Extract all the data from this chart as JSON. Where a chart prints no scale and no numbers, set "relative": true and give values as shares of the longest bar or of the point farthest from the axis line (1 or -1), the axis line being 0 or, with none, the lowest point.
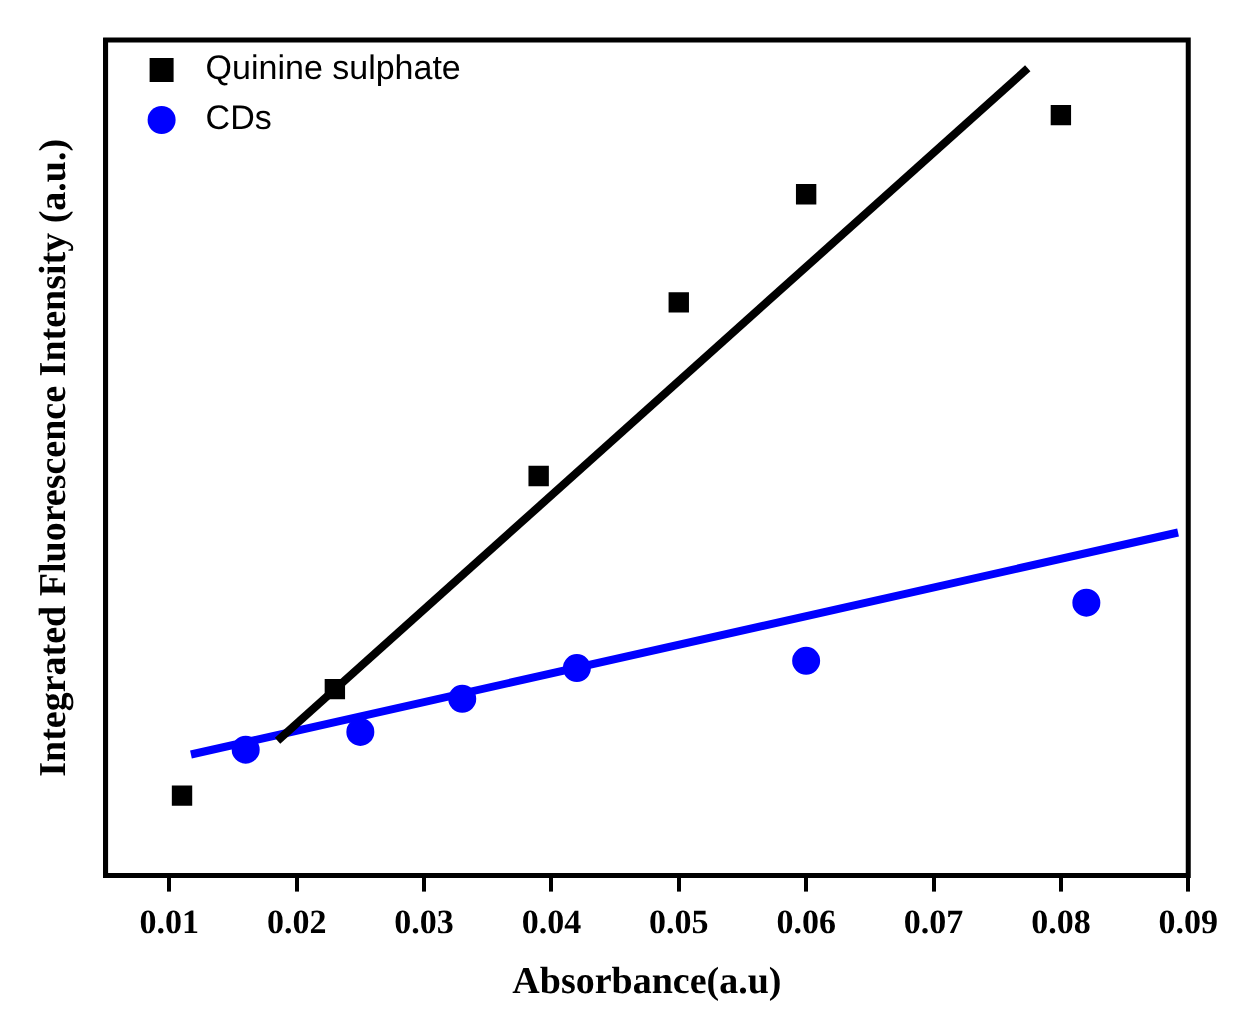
{
  "chart_data": {
    "type": "scatter",
    "xlabel": "Absorbance(a.u)",
    "ylabel": "Integrated Fluorescence Intensity (a.u.)",
    "relative": true,
    "legend": "top left",
    "xlim": [
      0.005,
      0.09
    ],
    "xticks": [
      {
        "value": 0.01,
        "label": "0.01"
      },
      {
        "value": 0.02,
        "label": "0.02"
      },
      {
        "value": 0.03,
        "label": "0.03"
      },
      {
        "value": 0.04,
        "label": "0.04"
      },
      {
        "value": 0.05,
        "label": "0.05"
      },
      {
        "value": 0.06,
        "label": "0.06"
      },
      {
        "value": 0.07,
        "label": "0.07"
      },
      {
        "value": 0.08,
        "label": "0.08"
      },
      {
        "value": 0.09,
        "label": "0.09"
      }
    ],
    "series": [
      {
        "name": "Quinine sulphate",
        "type": "scatter",
        "marker": "square",
        "color": "#000000",
        "x": [
          0.011,
          0.023,
          0.039,
          0.05,
          0.06,
          0.08
        ],
        "values": [
          0.099,
          0.231,
          0.495,
          0.71,
          0.844,
          0.942
        ]
      },
      {
        "name": "CDs",
        "type": "scatter",
        "marker": "circle",
        "color": "#0000ff",
        "x": [
          0.016,
          0.025,
          0.033,
          0.042,
          0.06,
          0.082
        ],
        "values": [
          0.156,
          0.178,
          0.219,
          0.257,
          0.266,
          0.338
        ]
      },
      {
        "type": "line",
        "marker": "none",
        "color": "#000000",
        "x": [
          0.0185,
          0.0774
        ],
        "values": [
          0.167,
          1
        ]
      },
      {
        "type": "line",
        "marker": "none",
        "color": "#0000ff",
        "x": [
          0.0117,
          0.0892
        ],
        "values": [
          0.15,
          0.425
        ]
      }
    ]
  }
}
